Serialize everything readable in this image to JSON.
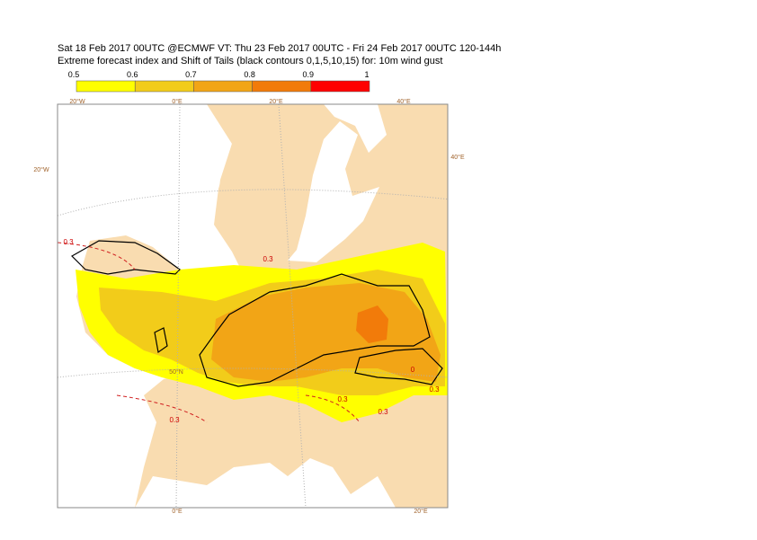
{
  "header": {
    "line1": "Sat 18 Feb 2017 00UTC @ECMWF VT: Thu 23 Feb 2017 00UTC - Fri 24 Feb 2017 00UTC  120-144h",
    "line2": "Extreme forecast index and Shift of Tails (black contours 0,1,5,10,15) for: 10m wind gust"
  },
  "colorbar": {
    "ticks": [
      0.5,
      0.6,
      0.7,
      0.8,
      0.9,
      1
    ],
    "colors": [
      "#ffff00",
      "#f2cc1a",
      "#f2a516",
      "#f27b0a",
      "#ff0000"
    ]
  },
  "map": {
    "graticule_labels": [
      "20°W",
      "0°E",
      "20°E",
      "40°E",
      "40°E",
      "20°W",
      "50°N",
      "0°E",
      "20°E"
    ],
    "contour_labels": [
      "0.3",
      "0.3",
      "0.3",
      "0.3",
      "0.3",
      "0.3",
      "0"
    ]
  }
}
